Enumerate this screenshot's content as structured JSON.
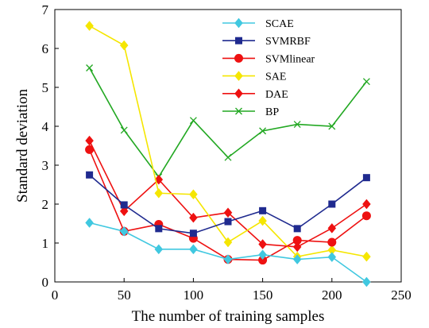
{
  "chart_data": {
    "type": "line",
    "title": "",
    "xlabel": "The number of training samples",
    "ylabel": "Standard deviation",
    "xlim": [
      0,
      250
    ],
    "ylim": [
      0,
      7
    ],
    "xticks": [
      0,
      50,
      100,
      150,
      200,
      250
    ],
    "yticks": [
      0,
      1,
      2,
      3,
      4,
      5,
      6,
      7
    ],
    "grid": false,
    "legend_position": "top-right",
    "x": [
      25,
      50,
      75,
      100,
      125,
      150,
      175,
      200,
      225
    ],
    "series": [
      {
        "name": "SCAE",
        "color": "#40c8e0",
        "marker": "diamond",
        "values": [
          1.52,
          1.3,
          0.84,
          0.84,
          0.58,
          0.7,
          0.58,
          0.64,
          0.0
        ]
      },
      {
        "name": "SVMRBF",
        "color": "#1f2a8f",
        "marker": "square",
        "values": [
          2.75,
          1.98,
          1.37,
          1.25,
          1.55,
          1.83,
          1.37,
          2.0,
          2.68
        ]
      },
      {
        "name": "SVMlinear",
        "color": "#ee1111",
        "marker": "circle",
        "values": [
          3.4,
          1.3,
          1.48,
          1.12,
          0.58,
          0.56,
          1.07,
          1.02,
          1.7
        ]
      },
      {
        "name": "SAE",
        "color": "#f5e600",
        "marker": "diamond",
        "values": [
          6.58,
          6.08,
          2.28,
          2.25,
          1.02,
          1.57,
          0.65,
          0.82,
          0.65
        ]
      },
      {
        "name": "DAE",
        "color": "#ee1111",
        "marker": "diamond",
        "values": [
          3.63,
          1.82,
          2.63,
          1.65,
          1.78,
          0.97,
          0.9,
          1.38,
          2.0
        ]
      },
      {
        "name": "BP",
        "color": "#22a822",
        "marker": "x",
        "values": [
          5.5,
          3.9,
          2.7,
          4.15,
          3.2,
          3.88,
          4.05,
          4.0,
          5.15
        ]
      }
    ]
  }
}
